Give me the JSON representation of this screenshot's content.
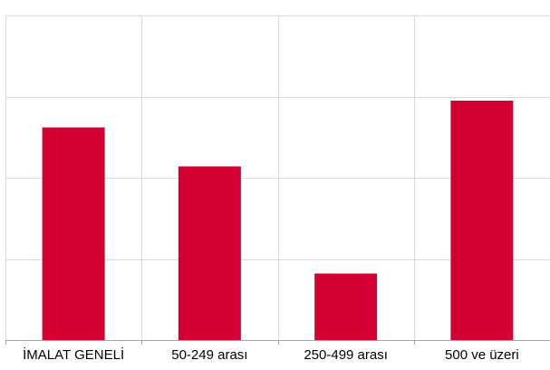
{
  "chart_data": {
    "type": "bar",
    "categories": [
      "İMALAT GENELİ",
      "50-249 arası",
      "250-499 arası",
      "500 ve üzeri"
    ],
    "values": [
      26.2,
      21.4,
      8.2,
      29.5
    ],
    "ylim": [
      0,
      40
    ],
    "grid": true,
    "legend": "none",
    "bar_color": "#D50032",
    "grid_color": "#d9d9d9",
    "axis_color": "#a6a6a6",
    "title": "",
    "xlabel": "",
    "ylabel": ""
  }
}
